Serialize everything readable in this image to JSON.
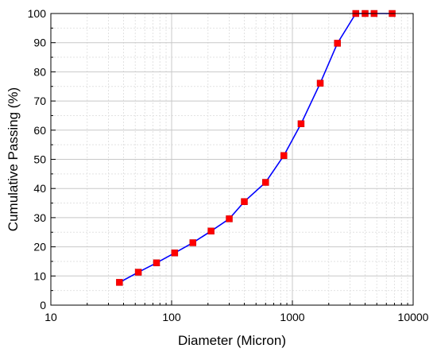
{
  "chart_data": {
    "type": "scatter",
    "title": "",
    "xlabel": "Diameter (Micron)",
    "ylabel": "Cumulative Passing (%)",
    "xscale": "log",
    "xlim": [
      10,
      10000
    ],
    "ylim": [
      0,
      100
    ],
    "x_ticks": [
      10,
      100,
      1000,
      10000
    ],
    "x_tick_labels": [
      "10",
      "100",
      "1000",
      "10000"
    ],
    "y_ticks": [
      0,
      10,
      20,
      30,
      40,
      50,
      60,
      70,
      80,
      90,
      100
    ],
    "y_tick_labels": [
      "0",
      "10",
      "20",
      "30",
      "40",
      "50",
      "60",
      "70",
      "80",
      "90",
      "100"
    ],
    "grid": true,
    "legend": "none",
    "line_color": "#0000ff",
    "marker_color": "#ff0000",
    "marker": "square",
    "series": [
      {
        "x": [
          37,
          53,
          75,
          106,
          150,
          212,
          300,
          400,
          600,
          850,
          1180,
          1700,
          2360,
          3350,
          4000,
          4750,
          6700
        ],
        "y": [
          7.8,
          11.3,
          14.5,
          17.9,
          21.4,
          25.4,
          29.6,
          35.5,
          42.1,
          51.3,
          62.2,
          76.1,
          89.8,
          100,
          100,
          100,
          100
        ]
      }
    ]
  }
}
